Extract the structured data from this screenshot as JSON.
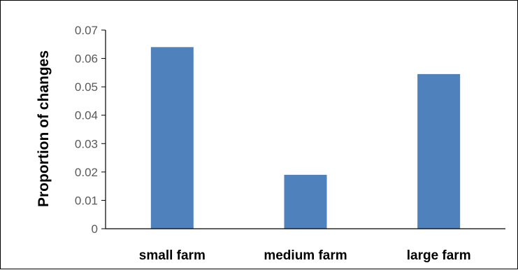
{
  "chart_data": {
    "type": "bar",
    "title": "",
    "xlabel": "",
    "ylabel": "Proportion of changes",
    "categories": [
      "small farm",
      "medium farm",
      "large farm"
    ],
    "values": [
      0.064,
      0.019,
      0.0545
    ],
    "ylim": [
      0,
      0.07
    ],
    "yticks": [
      "0",
      "0.01",
      "0.02",
      "0.03",
      "0.04",
      "0.05",
      "0.06",
      "0.07"
    ],
    "grid": false,
    "legend": "none",
    "colors": {
      "bar": "#4f81bd",
      "axis": "#000000",
      "tick_text": "#595959"
    }
  }
}
